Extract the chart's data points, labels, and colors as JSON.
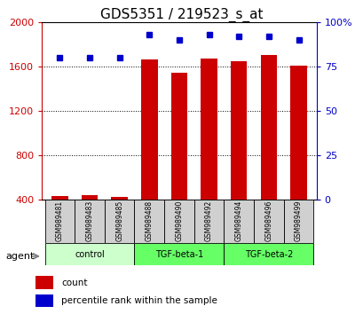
{
  "title": "GDS5351 / 219523_s_at",
  "samples": [
    "GSM989481",
    "GSM989483",
    "GSM989485",
    "GSM989488",
    "GSM989490",
    "GSM989492",
    "GSM989494",
    "GSM989496",
    "GSM989499"
  ],
  "counts": [
    430,
    440,
    425,
    1660,
    1540,
    1670,
    1650,
    1700,
    1605
  ],
  "percentile_ranks": [
    80,
    80,
    80,
    93,
    90,
    93,
    92,
    92,
    90
  ],
  "groups": [
    {
      "label": "control",
      "start": 0,
      "end": 3,
      "color": "#ccffcc"
    },
    {
      "label": "TGF-beta-1",
      "start": 3,
      "end": 6,
      "color": "#66ff66"
    },
    {
      "label": "TGF-beta-2",
      "start": 6,
      "end": 9,
      "color": "#66ff66"
    }
  ],
  "ylim_left": [
    400,
    2000
  ],
  "ylim_right": [
    0,
    100
  ],
  "yticks_left": [
    400,
    800,
    1200,
    1600,
    2000
  ],
  "ytick_labels_left": [
    "400",
    "800",
    "1200",
    "1600",
    "2000"
  ],
  "yticks_right": [
    0,
    25,
    50,
    75,
    100
  ],
  "ytick_labels_right": [
    "0",
    "25",
    "50",
    "75",
    "100%"
  ],
  "bar_color": "#cc0000",
  "dot_color": "#0000cc",
  "grid_color": "#000000",
  "bg_color": "#ffffff",
  "plot_bg_color": "#ffffff",
  "left_axis_color": "#cc0000",
  "right_axis_color": "#0000cc",
  "title_fontsize": 11,
  "tick_fontsize": 8,
  "label_fontsize": 9,
  "agent_label": "agent",
  "legend_count": "count",
  "legend_pct": "percentile rank within the sample",
  "group_label_colors": [
    "#ccffcc",
    "#66ff66",
    "#66ff66"
  ]
}
